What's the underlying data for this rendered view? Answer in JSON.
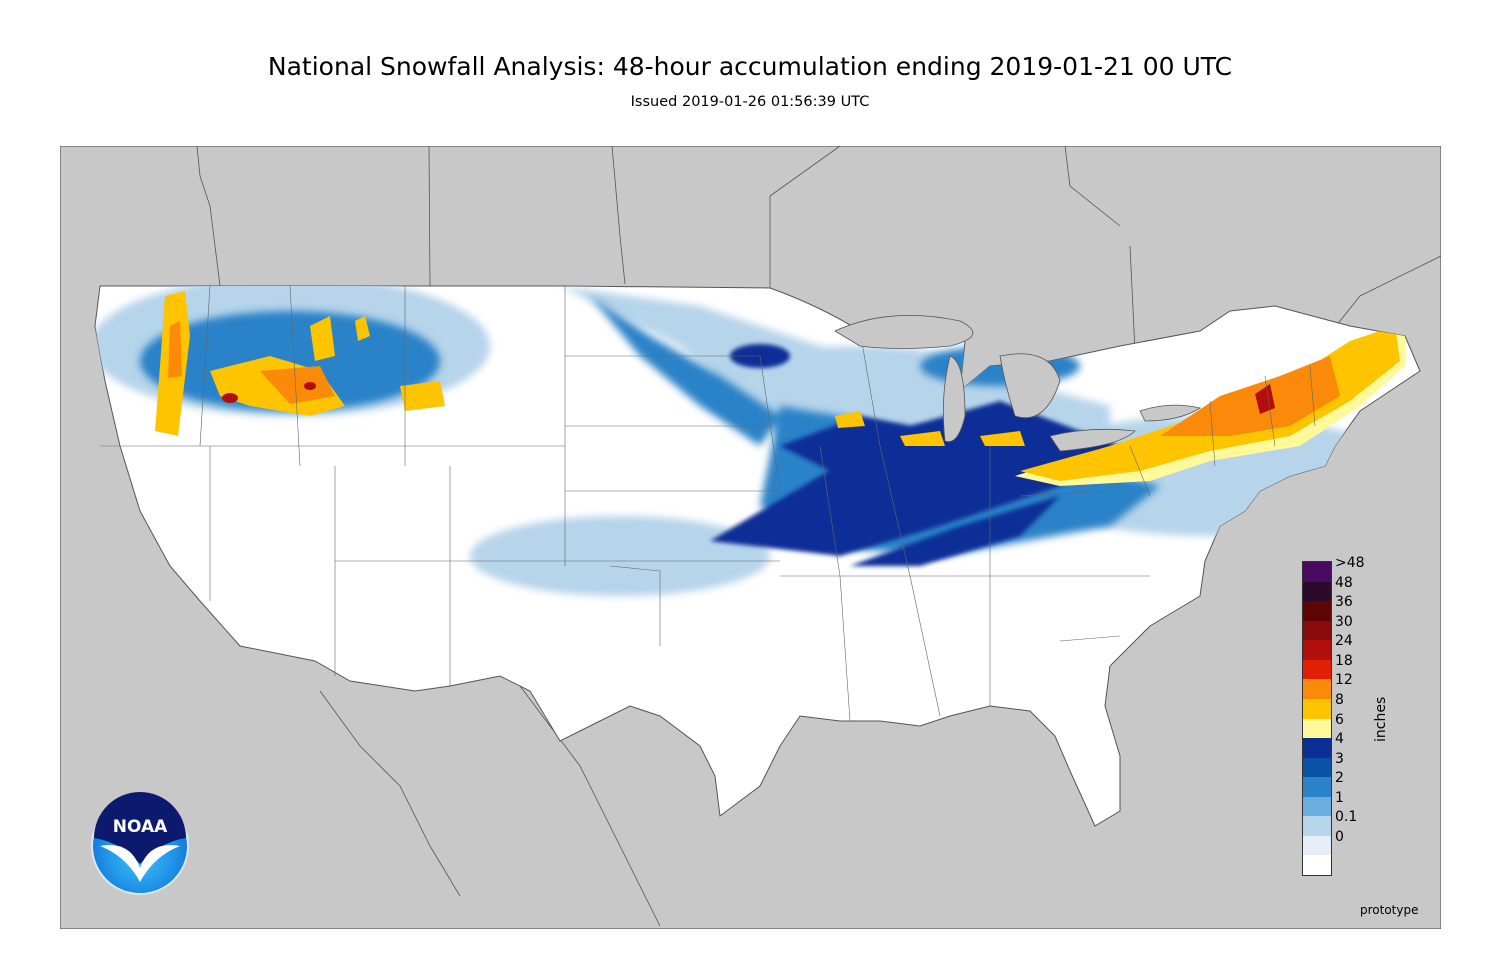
{
  "header": {
    "title": "National Snowfall Analysis: 48-hour accumulation ending 2019-01-21 00 UTC",
    "subtitle": "Issued 2019-01-26 01:56:39 UTC"
  },
  "map": {
    "region": "Contiguous United States",
    "background_color": "#c8c8c8",
    "land_color": "#ffffff",
    "border_color": "#555555"
  },
  "logo": {
    "text": "NOAA"
  },
  "legend": {
    "units": "inches",
    "levels": [
      {
        "label": ">48",
        "color": "#4b0a62"
      },
      {
        "label": "48",
        "color": "#2b0a2c"
      },
      {
        "label": "36",
        "color": "#5e0505"
      },
      {
        "label": "30",
        "color": "#8a0b0b"
      },
      {
        "label": "24",
        "color": "#b30e0e"
      },
      {
        "label": "18",
        "color": "#e21e05"
      },
      {
        "label": "12",
        "color": "#fb8a0a"
      },
      {
        "label": "8",
        "color": "#ffc400"
      },
      {
        "label": "6",
        "color": "#fff99a"
      },
      {
        "label": "4",
        "color": "#0c2e97"
      },
      {
        "label": "3",
        "color": "#0a52a5"
      },
      {
        "label": "2",
        "color": "#2a82c8"
      },
      {
        "label": "1",
        "color": "#6aaede"
      },
      {
        "label": "0.1",
        "color": "#b6d4ea"
      },
      {
        "label": "0",
        "color": "#e6eff7"
      }
    ],
    "zero_color": "#ffffff"
  },
  "footnote": "prototype"
}
